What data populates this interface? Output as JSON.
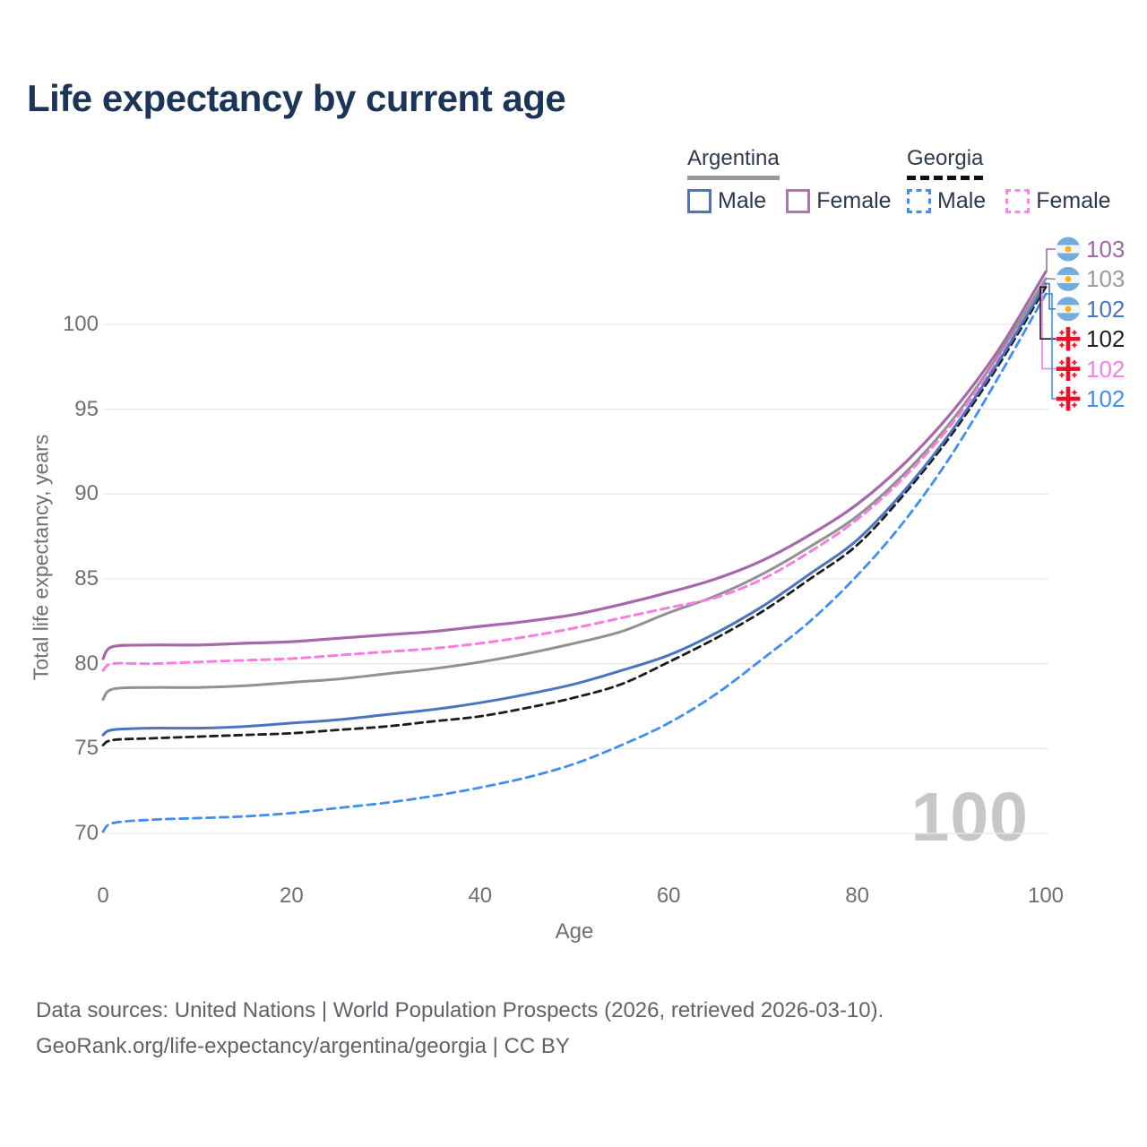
{
  "title": "Life expectancy by current age",
  "legend": {
    "groups": [
      {
        "label": "Argentina",
        "underline_color": "#999999",
        "underline_style": "solid",
        "items": [
          {
            "label": "Male",
            "color": "#4a74c0",
            "dashed": false
          },
          {
            "label": "Female",
            "color": "#b172b4",
            "dashed": false
          }
        ]
      },
      {
        "label": "Georgia",
        "underline_color": "#111111",
        "underline_style": "dashed",
        "items": [
          {
            "label": "Male",
            "color": "#3f8df5",
            "dashed": true
          },
          {
            "label": "Female",
            "color": "#fb86e6",
            "dashed": true
          }
        ]
      }
    ]
  },
  "watermark": "100",
  "footer": {
    "line1": "Data sources: United Nations | World Population Prospects (2026, retrieved 2026-03-10).",
    "line2": "GeoRank.org/life-expectancy/argentina/georgia | CC BY"
  },
  "chart_data": {
    "type": "line",
    "title": "Life expectancy by current age",
    "xlabel": "Age",
    "ylabel": "Total life expectancy, years",
    "xlim": [
      0,
      100
    ],
    "ylim": [
      70,
      100
    ],
    "x_ticks": [
      0,
      20,
      40,
      60,
      80,
      100
    ],
    "y_ticks": [
      70,
      75,
      80,
      85,
      90,
      95,
      100
    ],
    "grid": "horizontal",
    "legend_position": "top-right",
    "x": [
      0,
      1,
      5,
      10,
      15,
      20,
      25,
      30,
      35,
      40,
      45,
      50,
      55,
      60,
      65,
      70,
      75,
      80,
      85,
      90,
      95,
      100
    ],
    "series": [
      {
        "name": "Argentina",
        "sex": "both",
        "color": "#919191",
        "dash": null,
        "width": 3,
        "values": [
          77.9,
          78.5,
          78.6,
          78.6,
          78.7,
          78.9,
          79.1,
          79.4,
          79.7,
          80.1,
          80.6,
          81.2,
          81.9,
          83.0,
          84.0,
          85.3,
          86.9,
          88.7,
          91.2,
          94.3,
          98.2,
          102.7
        ],
        "callout": {
          "row": 1,
          "label": "103",
          "label_color": "#9b9b9b",
          "flag": "argentina"
        }
      },
      {
        "name": "Argentina Female",
        "sex": "female",
        "color": "#a667ab",
        "dash": null,
        "width": 3.2,
        "values": [
          80.3,
          81.0,
          81.1,
          81.1,
          81.2,
          81.3,
          81.5,
          81.7,
          81.9,
          82.2,
          82.5,
          82.9,
          83.5,
          84.2,
          85.0,
          86.1,
          87.6,
          89.4,
          91.8,
          94.8,
          98.5,
          103.1
        ],
        "callout": {
          "row": 0,
          "label": "103",
          "label_color": "#a365a8",
          "flag": "argentina"
        }
      },
      {
        "name": "Georgia Female",
        "sex": "female",
        "color": "#f97ce0",
        "dash": "9 6",
        "width": 3,
        "values": [
          79.6,
          80.0,
          80.0,
          80.1,
          80.2,
          80.3,
          80.5,
          80.7,
          80.9,
          81.2,
          81.6,
          82.1,
          82.7,
          83.3,
          83.9,
          85.0,
          86.6,
          88.5,
          91.0,
          94.1,
          98.0,
          102.3
        ],
        "callout": {
          "row": 4,
          "label": "102",
          "label_color": "#fb7ce4",
          "flag": "georgia"
        }
      },
      {
        "name": "Georgia",
        "sex": "both",
        "color": "#1c1c1c",
        "dash": "8 5.5",
        "width": 2.8,
        "values": [
          75.2,
          75.5,
          75.6,
          75.7,
          75.8,
          75.9,
          76.1,
          76.3,
          76.6,
          76.9,
          77.4,
          78.0,
          78.8,
          80.1,
          81.5,
          83.1,
          85.0,
          87.0,
          90.0,
          93.5,
          97.6,
          102.2
        ],
        "callout": {
          "row": 3,
          "label": "102",
          "label_color": "#1f1f1f",
          "flag": "georgia"
        }
      },
      {
        "name": "Argentina Male",
        "sex": "male",
        "color": "#4a74c0",
        "dash": null,
        "width": 3,
        "values": [
          75.8,
          76.1,
          76.2,
          76.2,
          76.3,
          76.5,
          76.7,
          77.0,
          77.3,
          77.7,
          78.2,
          78.8,
          79.6,
          80.5,
          81.8,
          83.4,
          85.3,
          87.3,
          90.2,
          93.7,
          97.8,
          102.4
        ],
        "callout": {
          "row": 2,
          "label": "102",
          "label_color": "#4b74bc",
          "flag": "argentina"
        }
      },
      {
        "name": "Georgia Male",
        "sex": "male",
        "color": "#3f8df5",
        "dash": "9 6",
        "width": 2.8,
        "values": [
          70.1,
          70.6,
          70.8,
          70.9,
          71.0,
          71.2,
          71.5,
          71.8,
          72.2,
          72.7,
          73.3,
          74.1,
          75.2,
          76.5,
          78.2,
          80.3,
          82.5,
          85.2,
          88.4,
          92.3,
          96.9,
          101.8
        ],
        "callout": {
          "row": 5,
          "label": "102",
          "label_color": "#3f8df5",
          "flag": "georgia"
        }
      }
    ]
  }
}
